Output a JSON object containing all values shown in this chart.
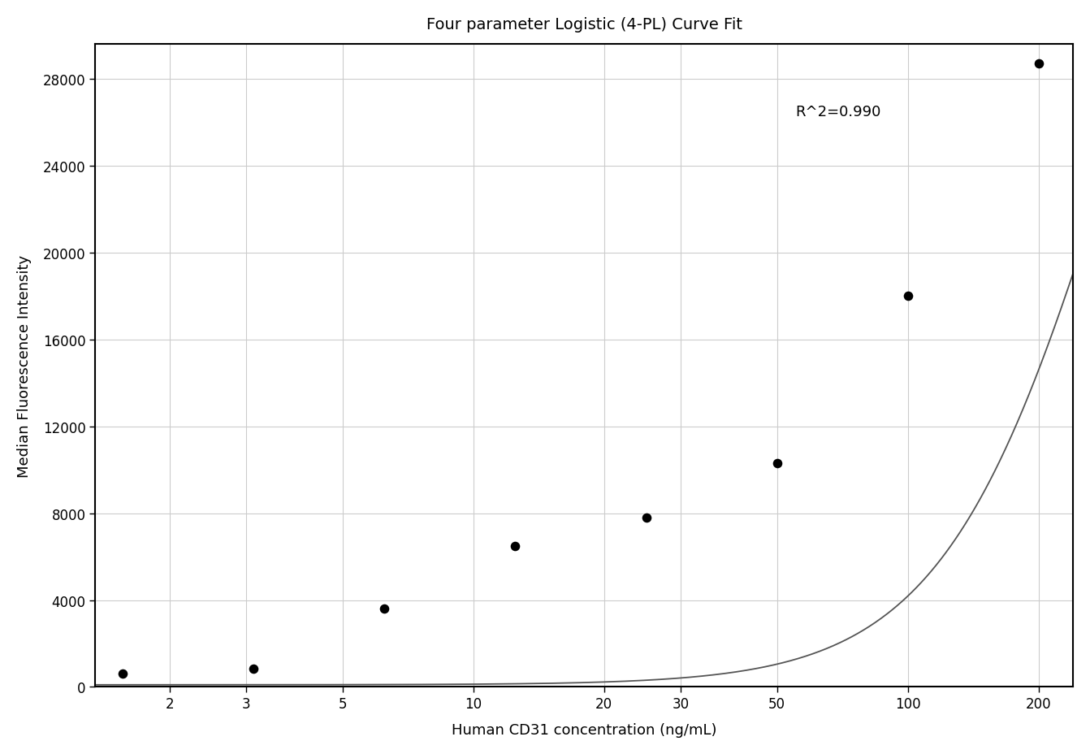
{
  "title": "Four parameter Logistic (4-PL) Curve Fit",
  "xlabel": "Human CD31 concentration (ng/mL)",
  "ylabel": "Median Fluorescence Intensity",
  "r_squared_text": "R^2=0.990",
  "scatter_x": [
    1.563,
    3.125,
    6.25,
    12.5,
    25,
    50,
    100,
    200
  ],
  "scatter_y": [
    600,
    850,
    3600,
    6500,
    7800,
    10300,
    18000,
    28700
  ],
  "xscale": "log",
  "xlim": [
    1.35,
    240
  ],
  "ylim": [
    0,
    29600
  ],
  "yticks": [
    0,
    4000,
    8000,
    12000,
    16000,
    20000,
    24000,
    28000
  ],
  "xticks": [
    2,
    3,
    5,
    10,
    20,
    30,
    50,
    100,
    200
  ],
  "xtick_labels": [
    "2",
    "3",
    "5",
    "10",
    "20",
    "30",
    "50",
    "100",
    "200"
  ],
  "grid_color": "#cccccc",
  "scatter_color": "#000000",
  "curve_color": "#555555",
  "background_color": "#ffffff",
  "plot_bg_color": "#ffffff",
  "title_fontsize": 14,
  "label_fontsize": 13,
  "tick_fontsize": 12,
  "annotation_fontsize": 13,
  "4pl_A": 100,
  "4pl_B": 2.2,
  "4pl_C": 300,
  "4pl_D": 50000,
  "r2_x": 55,
  "r2_y": 26500
}
